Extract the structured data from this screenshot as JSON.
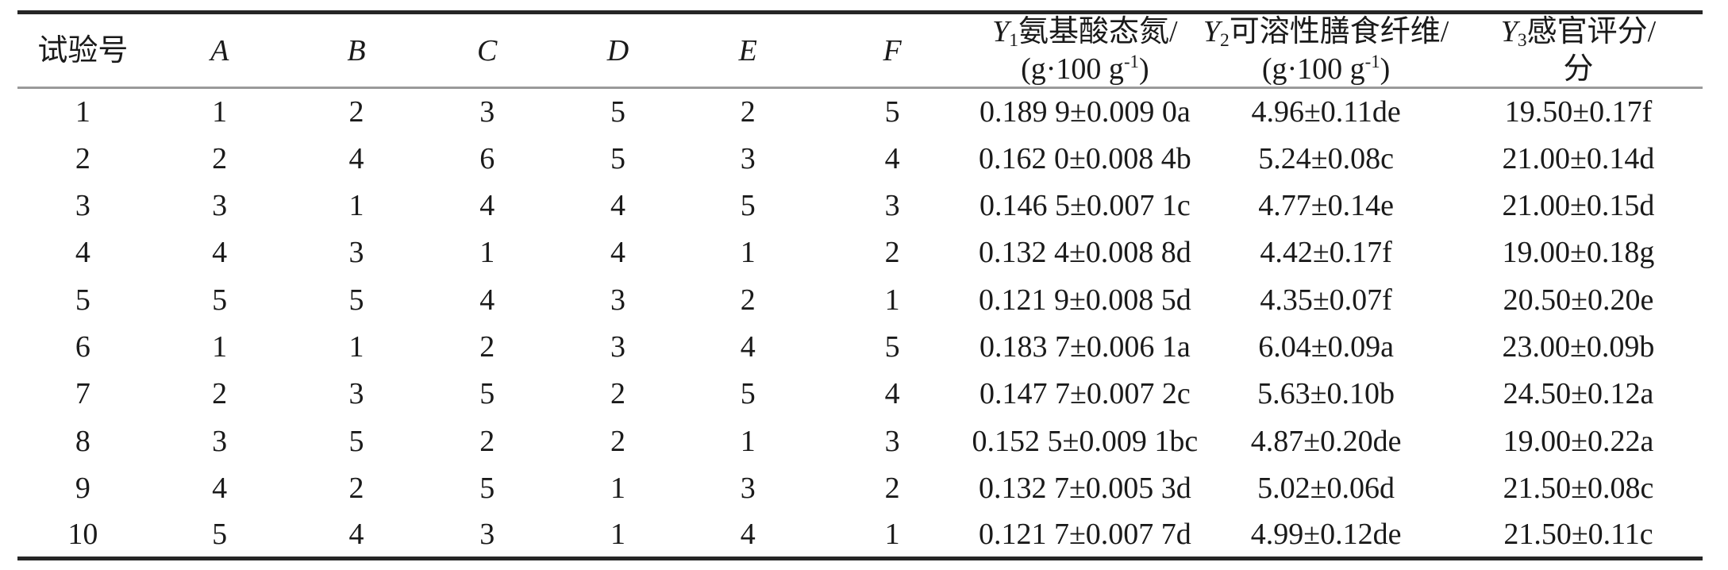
{
  "table": {
    "header": {
      "trial_label": "试验号",
      "factor_labels": [
        "A",
        "B",
        "C",
        "D",
        "E",
        "F"
      ],
      "y_columns": [
        {
          "symbol": "Y",
          "subscript": "1",
          "name": "氨基酸态氮/",
          "unit_main": "(g·100 g",
          "unit_sup": "-1",
          "unit_end": ")"
        },
        {
          "symbol": "Y",
          "subscript": "2",
          "name": "可溶性膳食纤维/",
          "unit_main": "(g·100 g",
          "unit_sup": "-1",
          "unit_end": ")"
        },
        {
          "symbol": "Y",
          "subscript": "3",
          "name": "感官评分/",
          "unit_main": "分",
          "unit_sup": "",
          "unit_end": ""
        }
      ]
    },
    "rows": [
      [
        "1",
        "1",
        "2",
        "3",
        "5",
        "2",
        "5",
        "0.189 9±0.009 0a",
        "4.96±0.11de",
        "19.50±0.17f"
      ],
      [
        "2",
        "2",
        "4",
        "6",
        "5",
        "3",
        "4",
        "0.162 0±0.008 4b",
        "5.24±0.08c",
        "21.00±0.14d"
      ],
      [
        "3",
        "3",
        "1",
        "4",
        "4",
        "5",
        "3",
        "0.146 5±0.007 1c",
        "4.77±0.14e",
        "21.00±0.15d"
      ],
      [
        "4",
        "4",
        "3",
        "1",
        "4",
        "1",
        "2",
        "0.132 4±0.008 8d",
        "4.42±0.17f",
        "19.00±0.18g"
      ],
      [
        "5",
        "5",
        "5",
        "4",
        "3",
        "2",
        "1",
        "0.121 9±0.008 5d",
        "4.35±0.07f",
        "20.50±0.20e"
      ],
      [
        "6",
        "1",
        "1",
        "2",
        "3",
        "4",
        "5",
        "0.183 7±0.006 1a",
        "6.04±0.09a",
        "23.00±0.09b"
      ],
      [
        "7",
        "2",
        "3",
        "5",
        "2",
        "5",
        "4",
        "0.147 7±0.007 2c",
        "5.63±0.10b",
        "24.50±0.12a"
      ],
      [
        "8",
        "3",
        "5",
        "2",
        "2",
        "1",
        "3",
        "0.152 5±0.009 1bc",
        "4.87±0.20de",
        "19.00±0.22a"
      ],
      [
        "9",
        "4",
        "2",
        "5",
        "1",
        "3",
        "2",
        "0.132 7±0.005 3d",
        "5.02±0.06d",
        "21.50±0.08c"
      ],
      [
        "10",
        "5",
        "4",
        "3",
        "1",
        "4",
        "1",
        "0.121 7±0.007 7d",
        "4.99±0.12de",
        "21.50±0.11c"
      ]
    ]
  }
}
